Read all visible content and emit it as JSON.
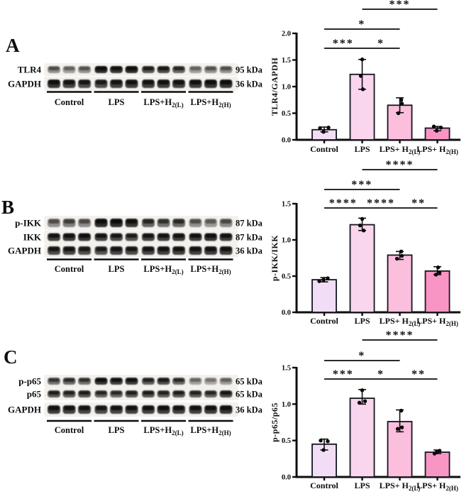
{
  "figure": {
    "background": "#ffffff",
    "panels": [
      {
        "letter": "A",
        "blot": {
          "rows": [
            {
              "label": "TLR4",
              "kda": "95 kDa",
              "intensities": [
                0.5,
                0.42,
                0.48,
                1.0,
                0.95,
                1.0,
                0.8,
                0.85,
                0.72,
                0.42,
                0.48,
                0.5
              ]
            },
            {
              "label": "GAPDH",
              "kda": "36 kDa",
              "intensities": [
                0.95,
                0.88,
                0.85,
                0.82,
                0.9,
                0.92,
                0.9,
                0.92,
                0.9,
                0.92,
                0.95,
                0.97
              ]
            }
          ],
          "groups": [
            {
              "pre": "Control",
              "sub": ""
            },
            {
              "pre": "LPS",
              "sub": ""
            },
            {
              "pre": "LPS+H",
              "sub": "2(L)"
            },
            {
              "pre": "LPS+H",
              "sub": "2(H)"
            }
          ]
        }
      },
      {
        "letter": "B",
        "blot": {
          "rows": [
            {
              "label": "p-IKK",
              "kda": "87 kDa",
              "intensities": [
                0.5,
                0.58,
                0.52,
                1.0,
                1.0,
                0.95,
                0.72,
                0.65,
                0.7,
                0.5,
                0.45,
                0.52
              ]
            },
            {
              "label": "IKK",
              "kda": "87 kDa",
              "intensities": [
                0.9,
                0.92,
                0.95,
                0.88,
                0.85,
                0.8,
                0.88,
                0.9,
                0.9,
                0.92,
                0.95,
                0.92
              ]
            },
            {
              "label": "GAPDH",
              "kda": "36 kDa",
              "intensities": [
                0.85,
                0.88,
                0.82,
                0.8,
                0.88,
                0.85,
                0.88,
                0.9,
                0.9,
                0.9,
                0.92,
                0.9
              ]
            }
          ],
          "groups": [
            {
              "pre": "Control",
              "sub": ""
            },
            {
              "pre": "LPS",
              "sub": ""
            },
            {
              "pre": "LPS+H",
              "sub": "2(L)"
            },
            {
              "pre": "LPS+H",
              "sub": "2(H)"
            }
          ]
        }
      },
      {
        "letter": "C",
        "blot": {
          "rows": [
            {
              "label": "p-p65",
              "kda": "65 kDa",
              "intensities": [
                0.62,
                0.68,
                0.65,
                0.95,
                0.9,
                0.92,
                0.75,
                0.82,
                0.7,
                0.4,
                0.35,
                0.42
              ]
            },
            {
              "label": "p65",
              "kda": "65 kDa",
              "intensities": [
                0.78,
                0.75,
                0.8,
                0.72,
                0.7,
                0.78,
                0.8,
                0.75,
                0.78,
                0.75,
                0.72,
                0.85
              ]
            },
            {
              "label": "GAPDH",
              "kda": "36 kDa",
              "intensities": [
                0.92,
                0.9,
                0.88,
                0.85,
                0.88,
                0.9,
                0.9,
                0.92,
                0.9,
                0.9,
                0.92,
                0.95
              ]
            }
          ],
          "groups": [
            {
              "pre": "Control",
              "sub": ""
            },
            {
              "pre": "LPS",
              "sub": ""
            },
            {
              "pre": "LPS+H",
              "sub": "2(L)"
            },
            {
              "pre": "LPS+H",
              "sub": "2(H)"
            }
          ]
        }
      }
    ]
  },
  "chart_data": [
    {
      "type": "bar",
      "ylabel": "TLR4/GAPDH",
      "ylim": [
        0,
        2.0
      ],
      "yticks": [
        0,
        0.5,
        1.0,
        1.5,
        2.0
      ],
      "ytick_labels": [
        "0.0",
        "0.5",
        "1.0",
        "1.5",
        "2.0"
      ],
      "categories": [
        {
          "text": "Control",
          "sub": ""
        },
        {
          "text": "LPS",
          "sub": ""
        },
        {
          "text": "LPS+ H",
          "sub": "2(L)"
        },
        {
          "text": "LPS+ H",
          "sub": "2(H)"
        }
      ],
      "values": [
        0.19,
        1.23,
        0.65,
        0.22
      ],
      "err_low": [
        0.15,
        0.95,
        0.51,
        0.17
      ],
      "err_high": [
        0.24,
        1.51,
        0.79,
        0.25
      ],
      "points": [
        [
          0.22,
          0.15,
          0.23
        ],
        [
          1.51,
          1.2,
          0.95
        ],
        [
          0.5,
          0.68,
          0.75
        ],
        [
          0.25,
          0.17,
          0.23
        ]
      ],
      "point_dx": [
        [
          -6,
          -1,
          6
        ],
        [
          0,
          -2,
          1
        ],
        [
          -2,
          3,
          2
        ],
        [
          -5,
          -1,
          5
        ]
      ],
      "bar_colors": [
        "#f2ddf7",
        "#fad6ee",
        "#fcbedd",
        "#f995c4"
      ],
      "bar_edge": "#15151d",
      "grid": false,
      "significance": [
        {
          "from": 0,
          "to": 1,
          "stars": "***",
          "level": 0
        },
        {
          "from": 1,
          "to": 2,
          "stars": "*",
          "level": 0
        },
        {
          "from": 0,
          "to": 2,
          "stars": "*",
          "level": 1
        },
        {
          "from": 1,
          "to": 3,
          "stars": "***",
          "level": 2
        }
      ]
    },
    {
      "type": "bar",
      "ylabel": "p-IKK/IKK",
      "ylim": [
        0,
        1.5
      ],
      "yticks": [
        0,
        0.5,
        1.0,
        1.5
      ],
      "ytick_labels": [
        "0.0",
        "0.5",
        "1.0",
        "1.5"
      ],
      "categories": [
        {
          "text": "Control",
          "sub": ""
        },
        {
          "text": "LPS",
          "sub": ""
        },
        {
          "text": "LPS+ H",
          "sub": "2(L)"
        },
        {
          "text": "LPS+ H",
          "sub": "2(H)"
        }
      ],
      "values": [
        0.45,
        1.21,
        0.79,
        0.57
      ],
      "err_low": [
        0.42,
        1.13,
        0.73,
        0.52
      ],
      "err_high": [
        0.48,
        1.3,
        0.84,
        0.63
      ],
      "points": [
        [
          0.43,
          0.45,
          0.47
        ],
        [
          1.29,
          1.2,
          1.13
        ],
        [
          0.74,
          0.78,
          0.84
        ],
        [
          0.52,
          0.55,
          0.62
        ]
      ],
      "point_dx": [
        [
          -7,
          -1,
          5
        ],
        [
          0,
          -3,
          2
        ],
        [
          -4,
          3,
          2
        ],
        [
          -2,
          3,
          1
        ]
      ],
      "bar_colors": [
        "#f2ddf7",
        "#fad6ee",
        "#fcbedd",
        "#f995c4"
      ],
      "bar_edge": "#15151d",
      "grid": false,
      "significance": [
        {
          "from": 0,
          "to": 1,
          "stars": "****",
          "level": 0
        },
        {
          "from": 1,
          "to": 2,
          "stars": "****",
          "level": 0
        },
        {
          "from": 2,
          "to": 3,
          "stars": "**",
          "level": 0
        },
        {
          "from": 0,
          "to": 2,
          "stars": "***",
          "level": 1
        },
        {
          "from": 1,
          "to": 3,
          "stars": "****",
          "level": 2
        }
      ]
    },
    {
      "type": "bar",
      "ylabel": "p-p65/p65",
      "ylim": [
        0,
        1.5
      ],
      "yticks": [
        0,
        0.5,
        1.0,
        1.5
      ],
      "ytick_labels": [
        "0.0",
        "0.5",
        "1.0",
        "1.5"
      ],
      "categories": [
        {
          "text": "Control",
          "sub": ""
        },
        {
          "text": "LPS",
          "sub": ""
        },
        {
          "text": "LPS+ H",
          "sub": "2(L)"
        },
        {
          "text": "LPS+ H",
          "sub": "2(H)"
        }
      ],
      "values": [
        0.45,
        1.08,
        0.76,
        0.34
      ],
      "err_low": [
        0.37,
        1.0,
        0.62,
        0.32
      ],
      "err_high": [
        0.52,
        1.2,
        0.92,
        0.37
      ],
      "points": [
        [
          0.5,
          0.37,
          0.49
        ],
        [
          1.19,
          1.02,
          1.04
        ],
        [
          0.66,
          0.68,
          0.91
        ],
        [
          0.32,
          0.34,
          0.36
        ]
      ],
      "point_dx": [
        [
          -5,
          -1,
          5
        ],
        [
          0,
          -4,
          4
        ],
        [
          -3,
          3,
          2
        ],
        [
          -4,
          -1,
          3
        ]
      ],
      "bar_colors": [
        "#f2ddf7",
        "#fad6ee",
        "#fcbedd",
        "#f995c4"
      ],
      "bar_edge": "#15151d",
      "grid": false,
      "significance": [
        {
          "from": 0,
          "to": 1,
          "stars": "***",
          "level": 0
        },
        {
          "from": 1,
          "to": 2,
          "stars": "*",
          "level": 0
        },
        {
          "from": 2,
          "to": 3,
          "stars": "**",
          "level": 0
        },
        {
          "from": 0,
          "to": 2,
          "stars": "*",
          "level": 1
        },
        {
          "from": 1,
          "to": 3,
          "stars": "****",
          "level": 2
        }
      ]
    }
  ]
}
